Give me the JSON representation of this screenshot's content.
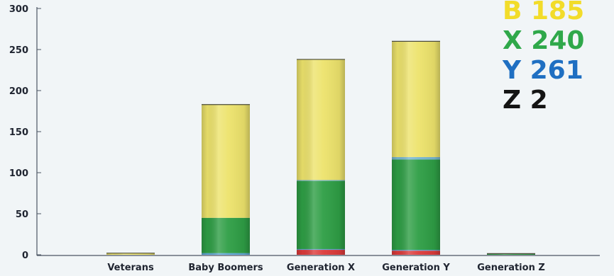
{
  "chart_data": {
    "type": "bar",
    "stacked": true,
    "categories": [
      "Veterans",
      "Baby Boomers",
      "Generation X",
      "Generation Y",
      "Generation Z"
    ],
    "series": [
      {
        "color": "#dc3a3a",
        "values": [
          0,
          0,
          6,
          5,
          0
        ]
      },
      {
        "color": "#5aa6d6",
        "values": [
          0,
          2,
          1,
          1,
          0
        ]
      },
      {
        "color": "#2e9e45",
        "values": [
          0,
          43,
          83,
          110,
          1
        ]
      },
      {
        "color": "#78b6cf",
        "values": [
          0,
          0,
          1,
          3,
          0
        ]
      },
      {
        "color": "#ede36c",
        "values": [
          2,
          138,
          147,
          141,
          0
        ]
      }
    ],
    "yticks": [
      0,
      50,
      100,
      150,
      200,
      250,
      300
    ],
    "ylim": [
      0,
      300
    ],
    "grid": false,
    "legend": {
      "placement": "top-right",
      "entries": [
        {
          "text": "B 185",
          "color": "#f2dc2a"
        },
        {
          "text": "X 240",
          "color": "#2fa84a"
        },
        {
          "text": "Y 261",
          "color": "#1f6fc2"
        },
        {
          "text": "Z 2",
          "color": "#141414"
        }
      ]
    }
  }
}
